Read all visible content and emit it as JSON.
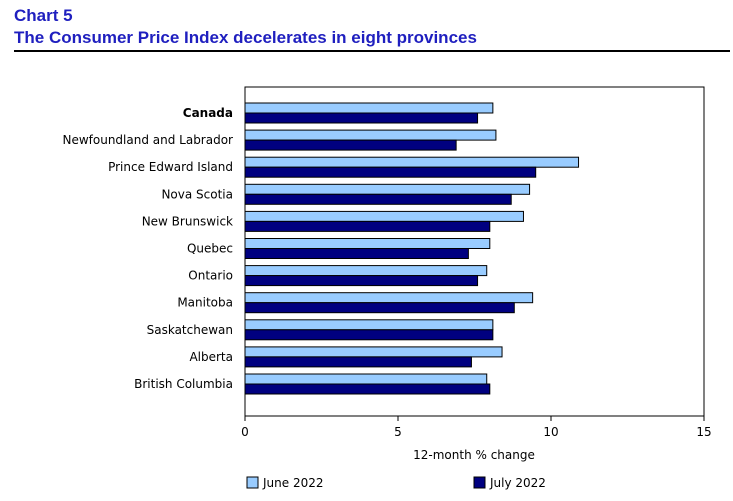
{
  "header": {
    "chart_number": "Chart 5",
    "title": "The Consumer Price Index decelerates in eight provinces"
  },
  "colors": {
    "june": "#99ccff",
    "july": "#000080",
    "title": "#1f1fbf"
  },
  "chart_data": {
    "type": "bar",
    "orientation": "horizontal",
    "categories": [
      "Canada",
      "Newfoundland and Labrador",
      "Prince Edward Island",
      "Nova Scotia",
      "New Brunswick",
      "Quebec",
      "Ontario",
      "Manitoba",
      "Saskatchewan",
      "Alberta",
      "British Columbia"
    ],
    "bold_categories": [
      "Canada"
    ],
    "series": [
      {
        "name": "June 2022",
        "values": [
          8.1,
          8.2,
          10.9,
          9.3,
          9.1,
          8.0,
          7.9,
          9.4,
          8.1,
          8.4,
          7.9
        ]
      },
      {
        "name": "July 2022",
        "values": [
          7.6,
          6.9,
          9.5,
          8.7,
          8.0,
          7.3,
          7.6,
          8.8,
          8.1,
          7.4,
          8.0
        ]
      }
    ],
    "xlabel": "12-month % change",
    "xlim": [
      0,
      15
    ],
    "xticks": [
      0,
      5,
      10,
      15
    ],
    "grid": false,
    "legend": "bottom"
  }
}
